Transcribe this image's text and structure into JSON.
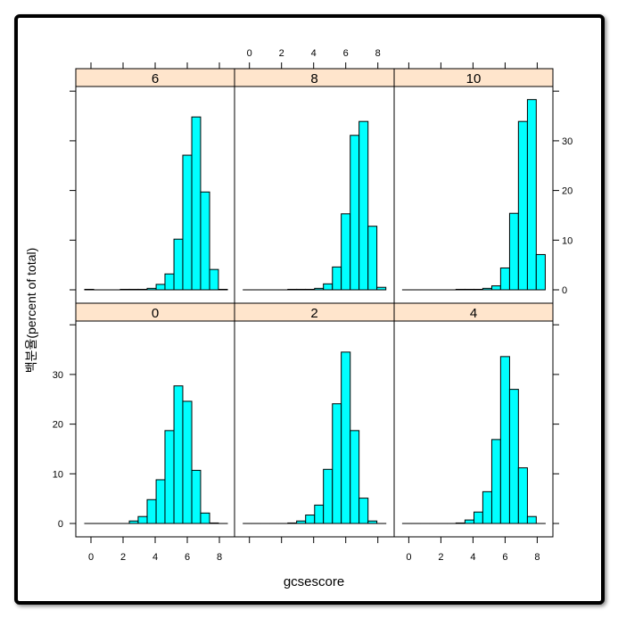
{
  "chart_data": {
    "type": "bar",
    "subtype": "histogram-lattice",
    "xlabel": "gcsescore",
    "ylabel": "백분율(percent of total)",
    "xlim": [
      -0.9,
      9.0
    ],
    "ylim": [
      -2.5,
      41
    ],
    "x_ticks": [
      "0",
      "2",
      "4",
      "6",
      "8"
    ],
    "y_ticks": [
      "0",
      "10",
      "20",
      "30"
    ],
    "bin_edges": [
      -0.39,
      0.17,
      0.72,
      1.28,
      1.83,
      2.39,
      2.94,
      3.5,
      4.06,
      4.61,
      5.17,
      5.72,
      6.28,
      6.83,
      7.39,
      7.94,
      8.5
    ],
    "bar_color": "#00ffff",
    "strip_color": "#ffe5cc",
    "grid": false,
    "panels": [
      {
        "label": "6",
        "row": "top",
        "col": 1,
        "values": [
          0.1,
          0,
          0,
          0,
          0.1,
          0.1,
          0.1,
          0.3,
          1.1,
          3.2,
          10.2,
          27.1,
          34.8,
          19.7,
          4.1,
          0.1
        ]
      },
      {
        "label": "8",
        "row": "top",
        "col": 2,
        "values": [
          0,
          0,
          0,
          0,
          0,
          0.1,
          0.1,
          0.1,
          0.3,
          1.2,
          4.6,
          15.3,
          31.1,
          33.9,
          12.8,
          0.5
        ]
      },
      {
        "label": "10",
        "row": "top",
        "col": 3,
        "values": [
          0,
          0,
          0,
          0,
          0,
          0,
          0.1,
          0.1,
          0.1,
          0.3,
          0.8,
          4.4,
          15.4,
          33.9,
          38.3,
          7.1
        ]
      },
      {
        "label": "0",
        "row": "bottom",
        "col": 1,
        "values": [
          0,
          0,
          0,
          0,
          0,
          0.5,
          1.4,
          4.8,
          8.8,
          18.7,
          27.7,
          24.6,
          10.7,
          2.1,
          0.1,
          0
        ]
      },
      {
        "label": "2",
        "row": "bottom",
        "col": 2,
        "values": [
          0,
          0,
          0,
          0,
          0,
          0.1,
          0.5,
          1.7,
          3.7,
          10.9,
          24.1,
          34.5,
          18.7,
          5.1,
          0.5,
          0
        ]
      },
      {
        "label": "4",
        "row": "bottom",
        "col": 3,
        "values": [
          0,
          0,
          0,
          0,
          0,
          0,
          0.1,
          0.7,
          2.3,
          6.4,
          16.9,
          33.6,
          27.0,
          11.2,
          1.4,
          0
        ]
      }
    ]
  }
}
